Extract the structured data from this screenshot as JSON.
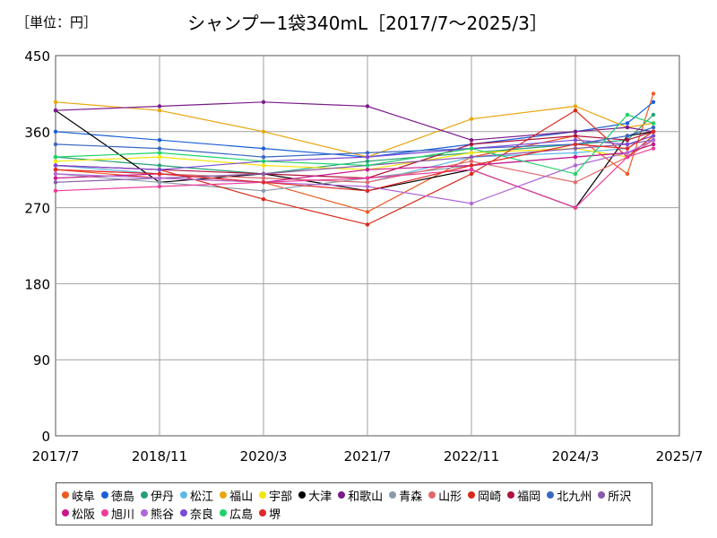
{
  "unit_label": "［単位：円］",
  "chart_data": {
    "type": "line",
    "title": "シャンプー1袋340mL［2017/7～2025/3］",
    "xlabel": "",
    "ylabel": "",
    "x": [
      "2017/7",
      "2018/11",
      "2020/3",
      "2021/7",
      "2022/11",
      "2024/3",
      "2024/11",
      "2025/3"
    ],
    "x_ticks": [
      "2017/7",
      "2018/11",
      "2020/3",
      "2021/7",
      "2022/11",
      "2024/3",
      "2025/7"
    ],
    "y_ticks": [
      0,
      90,
      180,
      270,
      360,
      450
    ],
    "ylim": [
      0,
      450
    ],
    "grid": true,
    "legend_position": "bottom",
    "series": [
      {
        "name": "岐阜",
        "color": "#f05a23",
        "values": [
          315,
          305,
          300,
          265,
          330,
          355,
          310,
          405
        ]
      },
      {
        "name": "徳島",
        "color": "#1a5fd6",
        "values": [
          360,
          350,
          340,
          330,
          345,
          360,
          370,
          395
        ]
      },
      {
        "name": "伊丹",
        "color": "#26a074",
        "values": [
          330,
          320,
          310,
          325,
          335,
          345,
          350,
          380
        ]
      },
      {
        "name": "松江",
        "color": "#5db8e8",
        "values": [
          320,
          310,
          305,
          300,
          330,
          335,
          340,
          360
        ]
      },
      {
        "name": "福山",
        "color": "#e8a60c",
        "values": [
          395,
          385,
          360,
          330,
          375,
          390,
          365,
          370
        ]
      },
      {
        "name": "宇部",
        "color": "#f2e60a",
        "values": [
          325,
          330,
          320,
          315,
          335,
          340,
          330,
          350
        ]
      },
      {
        "name": "大津",
        "color": "#000000",
        "values": [
          385,
          300,
          310,
          290,
          315,
          270,
          355,
          360
        ]
      },
      {
        "name": "和歌山",
        "color": "#7a1a8c",
        "values": [
          385,
          390,
          395,
          390,
          350,
          360,
          365,
          360
        ]
      },
      {
        "name": "青森",
        "color": "#8a9aa8",
        "values": [
          310,
          300,
          290,
          305,
          320,
          330,
          335,
          345
        ]
      },
      {
        "name": "山形",
        "color": "#e06a6a",
        "values": [
          315,
          310,
          305,
          300,
          325,
          300,
          330,
          350
        ]
      },
      {
        "name": "岡崎",
        "color": "#d62a1a",
        "values": [
          320,
          315,
          280,
          250,
          310,
          385,
          330,
          355
        ]
      },
      {
        "name": "福岡",
        "color": "#b0123c",
        "values": [
          320,
          315,
          310,
          305,
          345,
          355,
          350,
          360
        ]
      },
      {
        "name": "北九州",
        "color": "#3a68c0",
        "values": [
          345,
          340,
          330,
          335,
          340,
          345,
          355,
          365
        ]
      },
      {
        "name": "所沢",
        "color": "#8a5aa8",
        "values": [
          300,
          305,
          310,
          320,
          330,
          340,
          345,
          350
        ]
      },
      {
        "name": "松阪",
        "color": "#c8178c",
        "values": [
          305,
          310,
          300,
          315,
          320,
          330,
          335,
          345
        ]
      },
      {
        "name": "旭川",
        "color": "#ee3a9a",
        "values": [
          290,
          295,
          300,
          305,
          315,
          270,
          330,
          340
        ]
      },
      {
        "name": "熊谷",
        "color": "#b066d6",
        "values": [
          310,
          305,
          300,
          295,
          275,
          320,
          335,
          350
        ]
      },
      {
        "name": "奈良",
        "color": "#7a4ad6",
        "values": [
          320,
          315,
          325,
          330,
          340,
          350,
          345,
          355
        ]
      },
      {
        "name": "広島",
        "color": "#1ed26a",
        "values": [
          330,
          335,
          325,
          320,
          340,
          310,
          380,
          370
        ]
      },
      {
        "name": "堺",
        "color": "#e02828",
        "values": [
          315,
          310,
          300,
          290,
          320,
          345,
          340,
          360
        ]
      }
    ]
  }
}
